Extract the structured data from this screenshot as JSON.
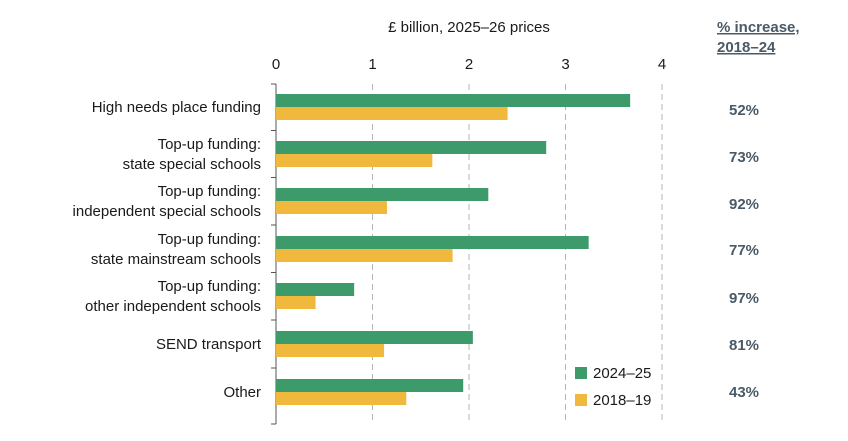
{
  "chart_data": {
    "type": "bar",
    "orientation": "horizontal",
    "xlabel": "£ billion, 2025–26 prices",
    "xlim": [
      0,
      4
    ],
    "xticks": [
      "0",
      "1",
      "2",
      "3",
      "4"
    ],
    "grid": true,
    "legend_position": "bottom-right",
    "categories": [
      [
        "High needs place funding"
      ],
      [
        "Top-up funding:",
        "state special schools"
      ],
      [
        "Top-up funding:",
        "independent special schools"
      ],
      [
        "Top-up funding:",
        "state mainstream schools"
      ],
      [
        "Top-up funding:",
        "other independent schools"
      ],
      [
        "SEND transport"
      ],
      [
        "Other"
      ]
    ],
    "series": [
      {
        "name": "2024–25",
        "color": "#3d9a6a",
        "values": [
          3.67,
          2.8,
          2.2,
          3.24,
          0.81,
          2.04,
          1.94
        ]
      },
      {
        "name": "2018–19",
        "color": "#f0b83c",
        "values": [
          2.4,
          1.62,
          1.15,
          1.83,
          0.41,
          1.12,
          1.35
        ]
      }
    ],
    "annotation_header": [
      "% increase,",
      "2018–24"
    ],
    "annotations": [
      "52%",
      "73%",
      "92%",
      "77%",
      "97%",
      "81%",
      "43%"
    ]
  }
}
